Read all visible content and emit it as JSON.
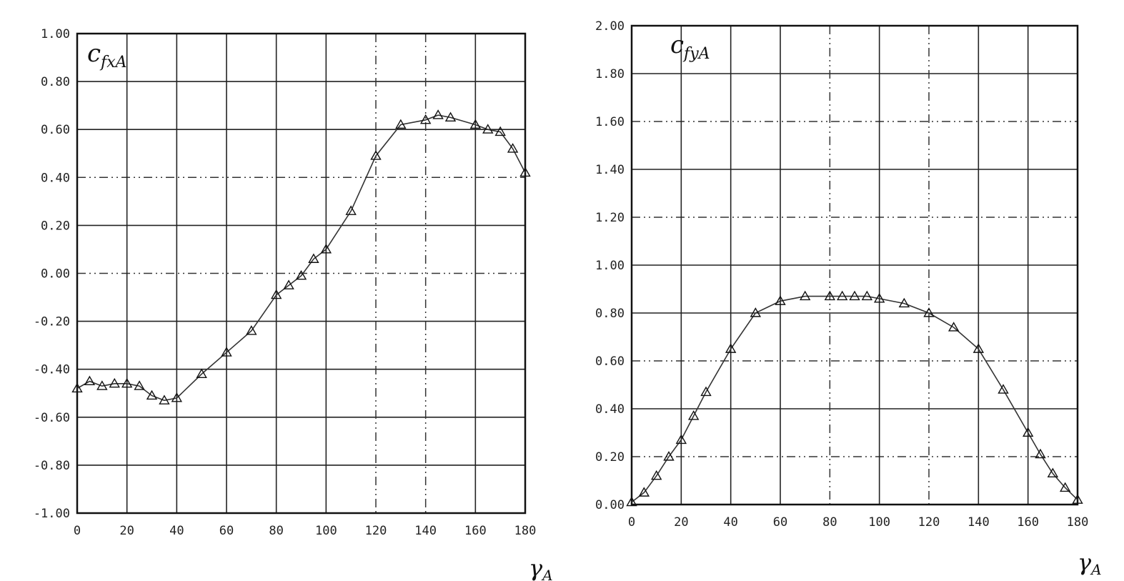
{
  "chart_data": [
    {
      "type": "line",
      "title": "",
      "ylabel": "c",
      "ylabel_sub": "fxA",
      "xlabel": "γ",
      "xlabel_sub": "A",
      "xlim": [
        0,
        180
      ],
      "ylim": [
        -1.0,
        1.0
      ],
      "x_tick_labels": [
        "0",
        "20",
        "40",
        "60",
        "80",
        "100",
        "120",
        "140",
        "160",
        "180"
      ],
      "y_tick_labels": [
        "1.00",
        "0.80",
        "0.60",
        "0.40",
        "0.20",
        "0.00",
        "-0.20",
        "-0.40",
        "-0.60",
        "-0.80",
        "-1.00"
      ],
      "series": [
        {
          "x": [
            0,
            5,
            10,
            15,
            20,
            25,
            30,
            35,
            40,
            50,
            60,
            70,
            80,
            85,
            90,
            95,
            100,
            110,
            120,
            130,
            140,
            145,
            150,
            160,
            165,
            170,
            175,
            180
          ],
          "y": [
            -0.48,
            -0.45,
            -0.47,
            -0.46,
            -0.46,
            -0.47,
            -0.51,
            -0.53,
            -0.52,
            -0.42,
            -0.33,
            -0.24,
            -0.09,
            -0.05,
            -0.01,
            0.06,
            0.1,
            0.26,
            0.49,
            0.62,
            0.64,
            0.66,
            0.65,
            0.62,
            0.6,
            0.59,
            0.52,
            0.42
          ]
        }
      ]
    },
    {
      "type": "line",
      "title": "",
      "ylabel": "c",
      "ylabel_sub": "fyA",
      "xlabel": "γ",
      "xlabel_sub": "A",
      "xlim": [
        0,
        180
      ],
      "ylim": [
        0.0,
        2.0
      ],
      "x_tick_labels": [
        "0",
        "20",
        "40",
        "60",
        "80",
        "100",
        "120",
        "140",
        "160",
        "180"
      ],
      "y_tick_labels": [
        "2.00",
        "1.80",
        "1.60",
        "1.40",
        "1.20",
        "1.00",
        "0.80",
        "0.60",
        "0.40",
        "0.20",
        "0.00"
      ],
      "series": [
        {
          "x": [
            0,
            5,
            10,
            15,
            20,
            25,
            30,
            40,
            50,
            60,
            70,
            80,
            85,
            90,
            95,
            100,
            110,
            120,
            130,
            140,
            150,
            160,
            165,
            170,
            175,
            180
          ],
          "y": [
            0.01,
            0.05,
            0.12,
            0.2,
            0.27,
            0.37,
            0.47,
            0.65,
            0.8,
            0.85,
            0.87,
            0.87,
            0.87,
            0.87,
            0.87,
            0.86,
            0.84,
            0.8,
            0.74,
            0.65,
            0.48,
            0.3,
            0.21,
            0.13,
            0.07,
            0.02
          ]
        }
      ]
    }
  ]
}
